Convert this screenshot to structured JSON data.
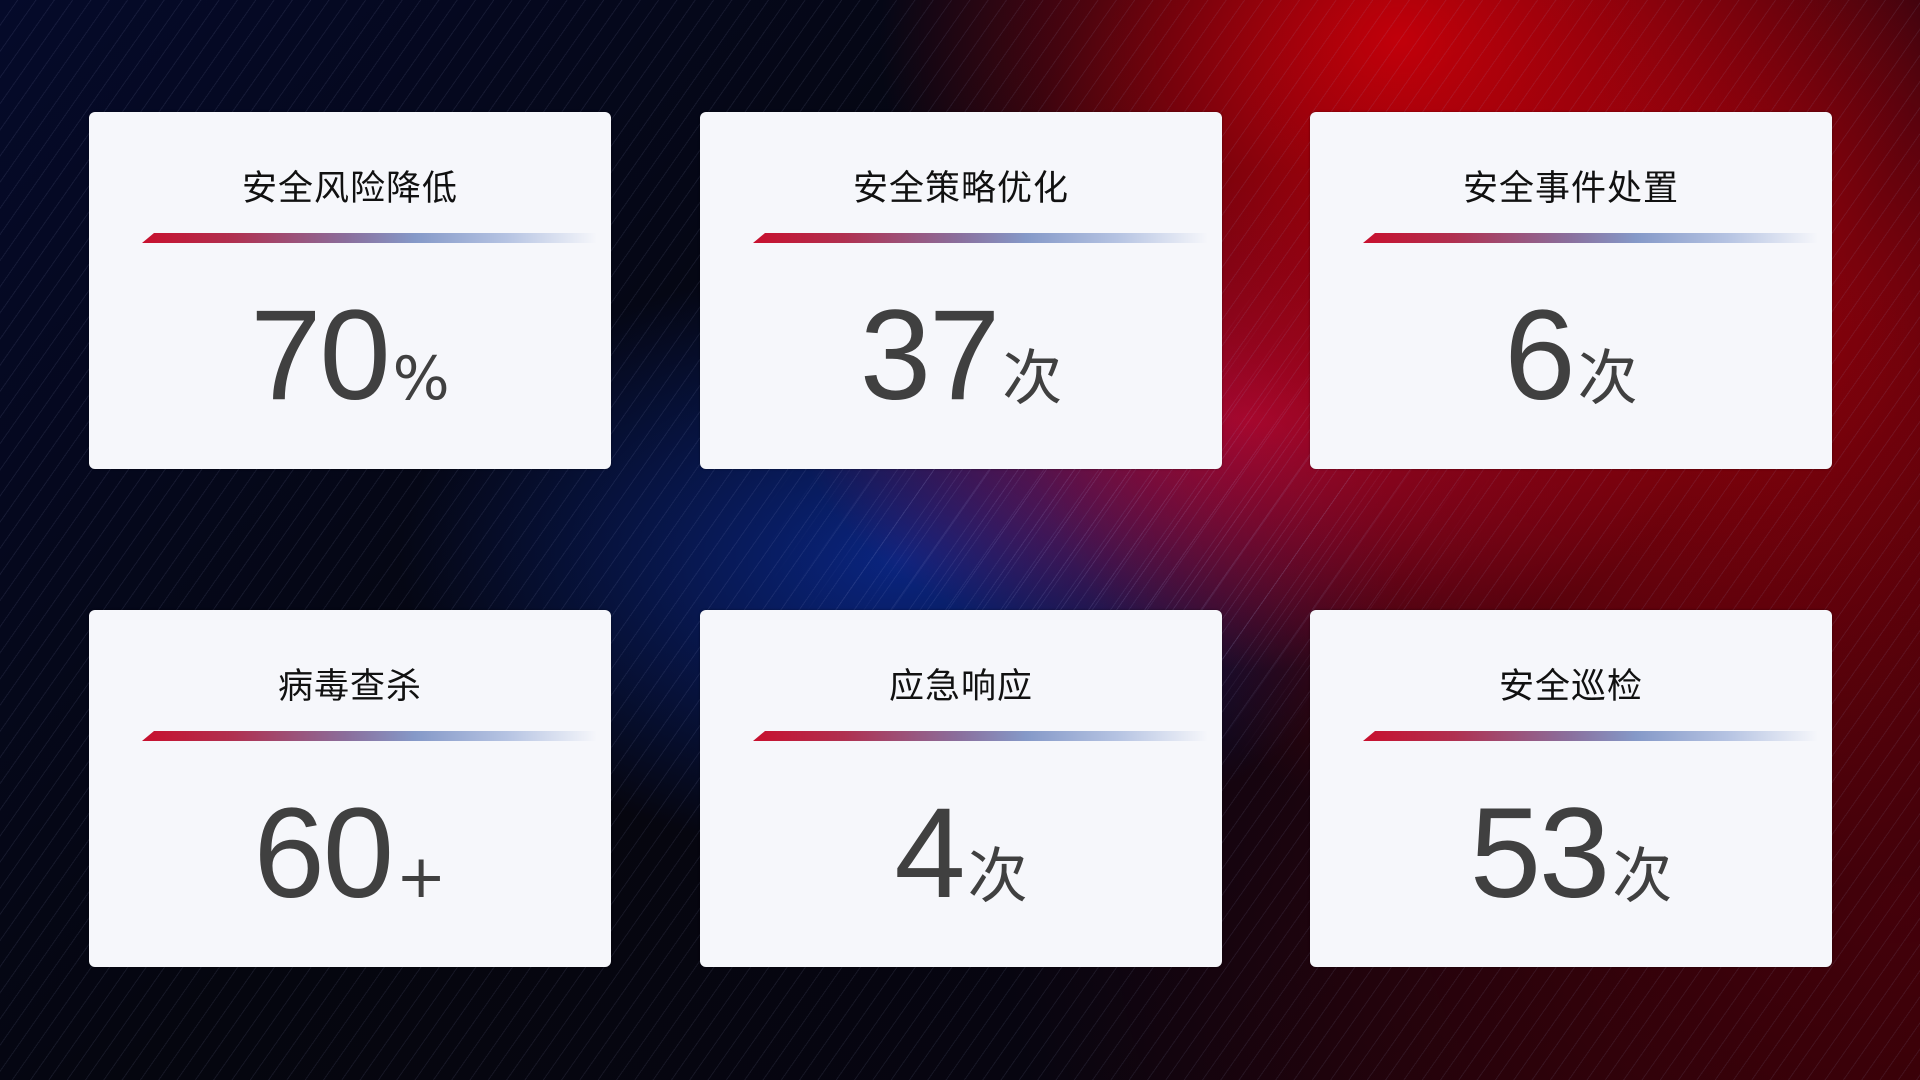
{
  "cards": [
    {
      "title": "安全风险降低",
      "value": "70",
      "unit": "%"
    },
    {
      "title": "安全策略优化",
      "value": "37",
      "unit": "次"
    },
    {
      "title": "安全事件处置",
      "value": "6",
      "unit": "次"
    },
    {
      "title": "病毒查杀",
      "value": "60",
      "unit": "+"
    },
    {
      "title": "应急响应",
      "value": "4",
      "unit": "次"
    },
    {
      "title": "安全巡检",
      "value": "53",
      "unit": "次"
    }
  ],
  "colors": {
    "accent_red": "#c8102e",
    "accent_blue": "#8599c8",
    "card_bg": "#f6f7fb",
    "value_text": "#404040"
  }
}
